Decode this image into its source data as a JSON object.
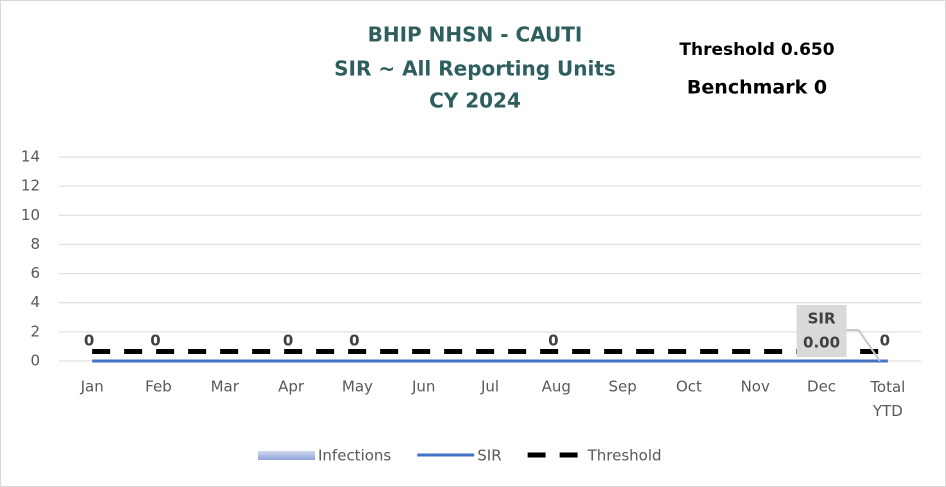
{
  "chart_data": {
    "type": "combo",
    "title": [
      "BHIP NHSN - CAUTI",
      "SIR ~ All Reporting Units",
      "CY 2024"
    ],
    "annotations": [
      "Threshold 0.650",
      "Benchmark 0"
    ],
    "categories": [
      "Jan",
      "Feb",
      "Mar",
      "Apr",
      "May",
      "Jun",
      "Jul",
      "Aug",
      "Sep",
      "Oct",
      "Nov",
      "Dec",
      "Total YTD"
    ],
    "series": [
      {
        "name": "Infections",
        "type": "bar",
        "color": "#a9b8e0",
        "values": [
          0,
          0,
          0,
          0,
          0,
          0,
          0,
          0,
          0,
          0,
          0,
          0,
          0
        ],
        "value_labels": [
          "0",
          "0",
          null,
          "0",
          "0",
          null,
          null,
          "0",
          null,
          null,
          null,
          null,
          "0"
        ]
      },
      {
        "name": "SIR",
        "type": "line",
        "color": "#4472c4",
        "values": [
          0,
          0,
          0,
          0,
          0,
          0,
          0,
          0,
          0,
          0,
          0,
          0,
          0
        ],
        "value_labels": [
          null,
          null,
          null,
          null,
          null,
          null,
          null,
          null,
          null,
          null,
          null,
          "0.00",
          null
        ]
      },
      {
        "name": "Threshold",
        "type": "dashed",
        "color": "#000000",
        "values": [
          0.65,
          0.65,
          0.65,
          0.65,
          0.65,
          0.65,
          0.65,
          0.65,
          0.65,
          0.65,
          0.65,
          0.65,
          0.65
        ]
      }
    ],
    "ylim": [
      0,
      14
    ],
    "yticks": [
      0,
      2,
      4,
      6,
      8,
      10,
      12,
      14
    ],
    "grid": true,
    "legend": "bottom"
  }
}
